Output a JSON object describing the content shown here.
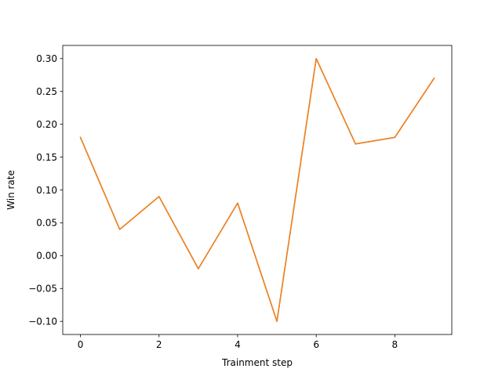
{
  "chart_data": {
    "type": "line",
    "xlabel": "Trainment step",
    "ylabel": "Win rate",
    "xlim": [
      -0.45,
      9.45
    ],
    "ylim": [
      -0.12,
      0.32
    ],
    "xticks": [
      0,
      2,
      4,
      6,
      8
    ],
    "xtick_labels": [
      "0",
      "2",
      "4",
      "6",
      "8"
    ],
    "yticks": [
      -0.1,
      -0.05,
      0.0,
      0.05,
      0.1,
      0.15,
      0.2,
      0.25,
      0.3
    ],
    "ytick_labels": [
      "−0.10",
      "−0.05",
      "0.00",
      "0.05",
      "0.10",
      "0.15",
      "0.20",
      "0.25",
      "0.30"
    ],
    "grid": false,
    "x": [
      0,
      1,
      2,
      3,
      4,
      5,
      6,
      7,
      8,
      9
    ],
    "series": [
      {
        "values": [
          0.18,
          0.04,
          0.09,
          -0.02,
          0.08,
          -0.1,
          0.3,
          0.17,
          0.18,
          0.27
        ],
        "color": "#1f77b4"
      },
      {
        "values": [
          0.18,
          0.04,
          0.09,
          -0.02,
          0.08,
          -0.1,
          0.3,
          0.17,
          0.18,
          0.27
        ],
        "color": "#ff7f0e"
      }
    ]
  }
}
